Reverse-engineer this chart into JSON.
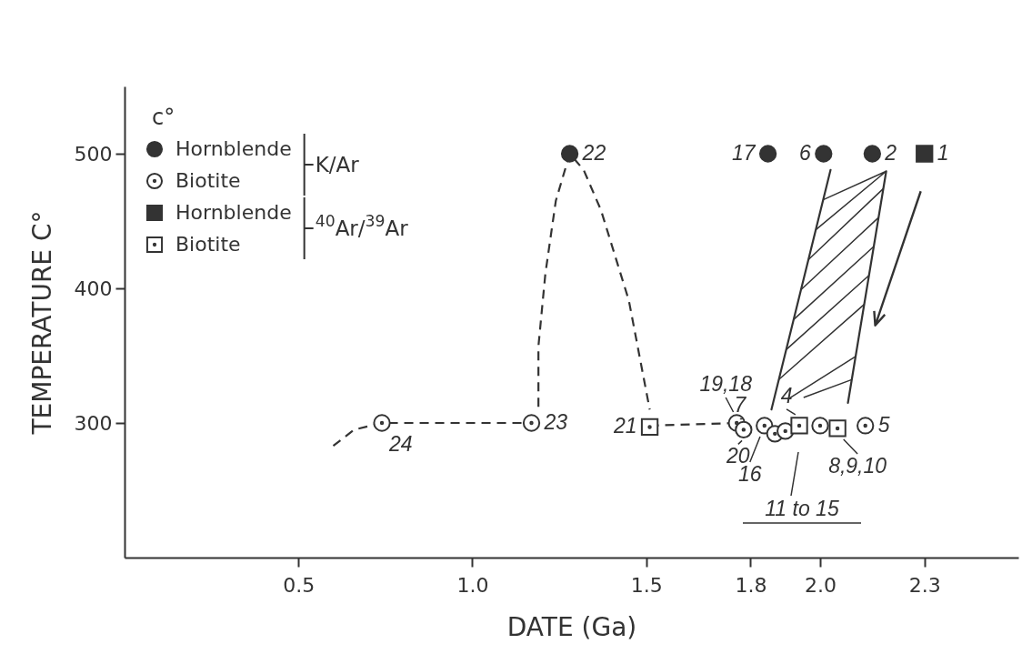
{
  "chart_data": {
    "type": "scatter",
    "xlabel": "DATE (Ga)",
    "ylabel": "TEMPERATURE C°",
    "xlim": [
      0,
      2.57
    ],
    "ylim": [
      200,
      550
    ],
    "xticks": [
      0.5,
      {
        "value": 1,
        "label": "1.0"
      },
      1.5,
      1.8,
      {
        "value": 2,
        "label": "2.0"
      },
      2.3
    ],
    "yticks": [
      300,
      400,
      500
    ],
    "grid": false,
    "legend": "top left",
    "series": [
      {
        "name": "Hornblende",
        "color": "#333333",
        "marker": "circle",
        "x": [
          1.28,
          1.85,
          2.01,
          2.15
        ],
        "values": [
          500,
          500,
          500,
          500
        ]
      },
      {
        "name": "Biotite",
        "color": "#333333",
        "marker": "circle",
        "x": [
          0.74,
          1.17,
          1.76,
          1.78,
          1.84,
          1.87,
          1.9,
          2.0,
          2.13
        ],
        "values": [
          300,
          300,
          300,
          295,
          298,
          292,
          294,
          298,
          298
        ]
      },
      {
        "name": "Hornblende",
        "color": "#333333",
        "marker": "square",
        "x": [
          2.3
        ],
        "values": [
          500
        ]
      },
      {
        "name": "Biotite",
        "color": "#333333",
        "marker": "square",
        "x": [
          1.51,
          1.94,
          2.05
        ],
        "values": [
          297,
          298,
          296
        ]
      },
      {
        "type": "line",
        "color": "#333333",
        "line_style": "dashed",
        "x": [
          0.6,
          0.66,
          0.74,
          1.17
        ],
        "values": [
          283,
          295,
          300,
          300
        ]
      },
      {
        "type": "line",
        "color": "#333333",
        "line_style": "dashed",
        "x": [
          1.51,
          1.76
        ],
        "values": [
          298,
          300
        ]
      },
      {
        "type": "line",
        "color": "#333333",
        "line_style": "dashed",
        "x": [
          1.19,
          1.19,
          1.21,
          1.24,
          1.28,
          1.32,
          1.37,
          1.45,
          1.51
        ],
        "values": [
          312,
          357,
          411,
          465,
          500,
          488,
          458,
          391,
          310
        ]
      },
      {
        "type": "line",
        "color": "#333333",
        "line_style": "solid",
        "x": [
          2.03,
          1.86
        ],
        "values": [
          488,
          310
        ]
      },
      {
        "type": "line",
        "color": "#333333",
        "line_style": "solid",
        "x": [
          2.19,
          2.08
        ],
        "values": [
          487,
          315
        ]
      }
    ],
    "annotations": [
      "c°",
      "K/Ar",
      "$^{40}$Ar/$^{39}$Ar",
      "11 to 15",
      {
        "text": "24",
        "x": 0.74,
        "y": 300
      },
      {
        "text": "23",
        "x": 1.17,
        "y": 300
      },
      {
        "text": "22",
        "x": 1.28,
        "y": 500
      },
      {
        "text": "21",
        "x": 1.51,
        "y": 297
      },
      {
        "text": "17",
        "x": 1.85,
        "y": 500
      },
      {
        "text": "6",
        "x": 2.01,
        "y": 500
      },
      {
        "text": "2",
        "x": 2.15,
        "y": 500
      },
      {
        "text": "1",
        "x": 2.3,
        "y": 500
      },
      {
        "text": "19,18",
        "x": 1.76,
        "y": 300
      },
      {
        "text": "7",
        "x": 1.78,
        "y": 295
      },
      {
        "text": "20",
        "x": 1.78,
        "y": 295
      },
      {
        "text": "16",
        "x": 1.84,
        "y": 298
      },
      {
        "text": "4",
        "x": 1.94,
        "y": 298
      },
      {
        "text": "5",
        "x": 2.13,
        "y": 298
      },
      {
        "text": "8,9,10",
        "x": 2.05,
        "y": 296
      }
    ]
  }
}
